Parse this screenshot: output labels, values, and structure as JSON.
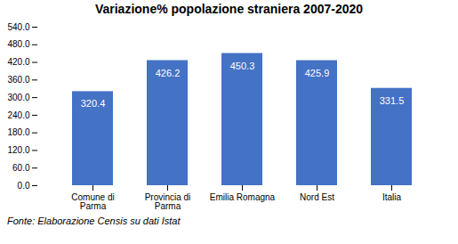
{
  "chart_data": {
    "type": "bar",
    "title": "Variazione%  popolazione straniera  2007-2020",
    "categories": [
      "Comune di\nParma",
      "Provincia di\nParma",
      "Emilia Romagna",
      "Nord Est",
      "Italia"
    ],
    "values": [
      320.4,
      426.2,
      450.3,
      425.9,
      331.5
    ],
    "color": "#4472C4",
    "ylim": [
      0,
      540
    ],
    "yticks": [
      {
        "value": 0,
        "label": "0.0"
      },
      {
        "value": 60,
        "label": "60.0"
      },
      {
        "value": 120,
        "label": "120.0"
      },
      {
        "value": 180,
        "label": "180.0"
      },
      {
        "value": 240,
        "label": "240.0"
      },
      {
        "value": 300,
        "label": "300.0"
      },
      {
        "value": 360,
        "label": "360.0"
      },
      {
        "value": 420,
        "label": "420.0"
      },
      {
        "value": 480,
        "label": "480.0"
      },
      {
        "value": 540,
        "label": "540.0"
      }
    ],
    "grid": false,
    "data_labels": true,
    "footnote": "Fonte: Elaborazione Censis su dati Istat"
  }
}
